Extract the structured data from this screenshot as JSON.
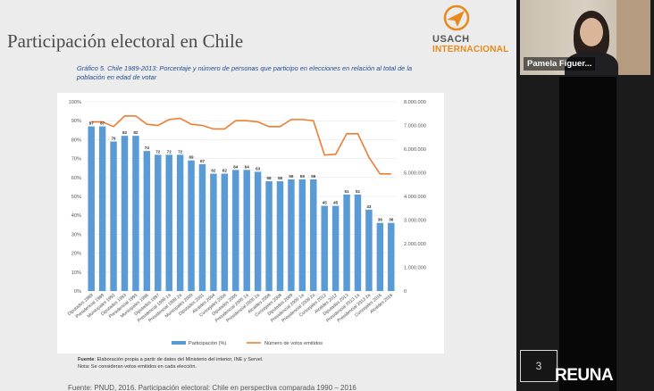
{
  "slide": {
    "title": "Participación electoral en Chile",
    "logo": {
      "line1": "USACH",
      "line2": "INTERNACIONAL"
    },
    "figure_caption": "Gráfico 5. Chile 1989-2013: Porcentaje y número de personas que participo en elecciones en relación al total de la población en edad de votar",
    "footnote_label": "Fuente",
    "footnote_text": ": Elaboración propia a partir de datos del Ministerio del interior, INE y Servel.",
    "footnote_note": "Nota: Se consideran votos emitidos en cada elección.",
    "bottom_source": "Fuente: PNUD, 2016. Participación electoral: Chile en perspectiva comparada 1990 – 2016"
  },
  "video": {
    "participant_name": "Pamela Figuer...",
    "page_number": "3",
    "brand": "REUNA"
  },
  "colors": {
    "bar": "#5b9bd5",
    "line": "#ed7d31"
  },
  "chart_data": {
    "type": "bar",
    "categories": [
      "Diputados 1989",
      "Presidencial 1989",
      "Municipales 1992",
      "Diputados 1993",
      "Presidencial 1993",
      "Municipales 1996",
      "Diputados 1997",
      "Presidencial 1999 1a",
      "Presidencial 1999 2a",
      "Municipales 2000",
      "Diputados 2001",
      "Alcaldes 2004",
      "Concejales 2004",
      "Diputados 2005",
      "Presidencial 2005 1a",
      "Presidencial 2005 2a",
      "Alcaldes 2008",
      "Concejales 2008",
      "Diputados 2009",
      "Presidencial 2009 1a",
      "Presidencial 2009 2a",
      "Concejales 2012",
      "Alcaldes 2012",
      "Diputados 2013",
      "Presidencial 2013 1a",
      "Presidencial 2013 2a",
      "Concejales 2016",
      "Alcaldes 2016"
    ],
    "series": [
      {
        "name": "Participación (%)",
        "type": "bar",
        "axis": "left",
        "values": [
          87,
          87,
          79,
          82,
          82,
          74,
          72,
          72,
          72,
          69,
          67,
          62,
          62,
          64,
          64,
          63,
          58,
          58,
          59,
          59,
          59,
          45,
          45,
          51,
          51,
          43,
          36,
          36
        ]
      },
      {
        "name": "Número de votos emitidos",
        "type": "line",
        "axis": "right",
        "values": [
          7150000,
          7150000,
          6950000,
          7400000,
          7400000,
          7050000,
          7000000,
          7250000,
          7300000,
          7050000,
          7000000,
          6850000,
          6850000,
          7200000,
          7200000,
          7150000,
          6950000,
          6950000,
          7250000,
          7250000,
          7200000,
          5750000,
          5780000,
          6650000,
          6650000,
          5650000,
          4950000,
          4950000
        ]
      }
    ],
    "y_ticks": [
      "0%",
      "10%",
      "20%",
      "30%",
      "40%",
      "50%",
      "60%",
      "70%",
      "80%",
      "90%",
      "100%"
    ],
    "y2_ticks": [
      "0",
      "1.000.000",
      "2.000.000",
      "3.000.000",
      "4.000.000",
      "5.000.000",
      "6.000.000",
      "7.000.000",
      "8.000.000"
    ],
    "ylim": [
      0,
      100
    ],
    "y2lim": [
      0,
      8000000
    ],
    "legend": "bottom",
    "grid": true
  }
}
